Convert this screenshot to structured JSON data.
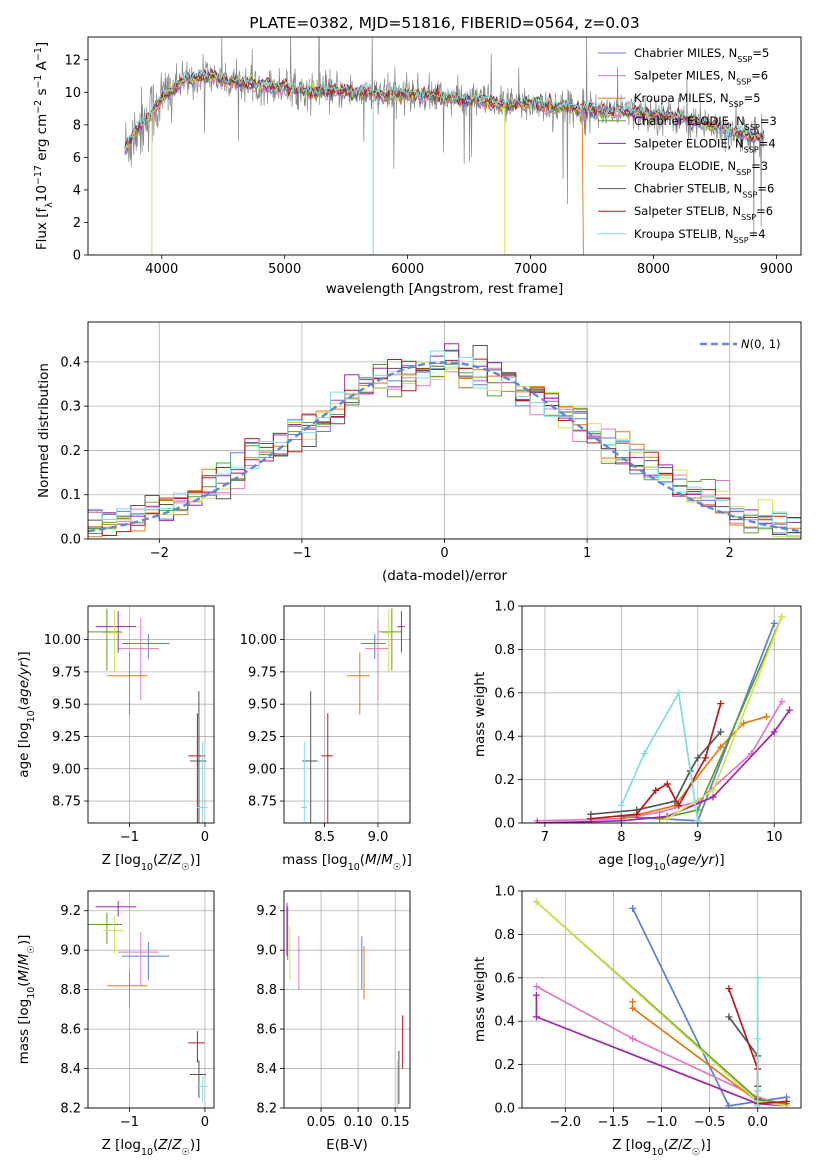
{
  "chart_data": [
    {
      "type": "line",
      "title": "PLATE=0382, MJD=51816, FIBERID=0564, z=0.03",
      "xlabel": "wavelength [Angstrom, rest frame]",
      "ylabel": "Flux [fλ10⁻¹⁷ erg cm⁻² s⁻¹ A⁻¹]",
      "xlim": [
        3400,
        9200
      ],
      "ylim": [
        0,
        13.4
      ],
      "xticks": [
        "4000",
        "5000",
        "6000",
        "7000",
        "8000",
        "9000"
      ],
      "yticks": [
        "0",
        "2",
        "4",
        "6",
        "8",
        "10",
        "12"
      ],
      "grid": false,
      "legend_position": "top-right",
      "observed_spectrum": {
        "x": [
          3700,
          3800,
          3900,
          4000,
          4200,
          4400,
          4600,
          4800,
          5000,
          5200,
          5400,
          5600,
          5800,
          6000,
          6200,
          6400,
          6600,
          6800,
          7000,
          7200,
          7400,
          7600,
          7800,
          8000,
          8200,
          8400,
          8600,
          8800
        ],
        "y": [
          6.5,
          7.8,
          8.6,
          9.6,
          10.8,
          11.0,
          10.6,
          10.5,
          10.3,
          10.0,
          10.1,
          10.0,
          9.8,
          9.9,
          9.8,
          9.6,
          9.5,
          9.2,
          9.3,
          9.1,
          9.0,
          8.8,
          8.8,
          8.6,
          8.5,
          8.1,
          7.7,
          7.3
        ]
      },
      "series": [
        {
          "name": "Chabrier MILES, N_SSP=5",
          "color": "#5b7fd6"
        },
        {
          "name": "Salpeter MILES, N_SSP=6",
          "color": "#e377c2"
        },
        {
          "name": "Kroupa MILES, N_SSP=5",
          "color": "#e07b1a"
        },
        {
          "name": "Chabrier ELODIE, N_SSP=3",
          "color": "#5aa02c"
        },
        {
          "name": "Salpeter ELODIE, N_SSP=4",
          "color": "#9c27b0"
        },
        {
          "name": "Kroupa ELODIE, N_SSP=3",
          "color": "#d4e157"
        },
        {
          "name": "Chabrier STELIB, N_SSP=6",
          "color": "#555555"
        },
        {
          "name": "Salpeter STELIB, N_SSP=6",
          "color": "#b71c1c"
        },
        {
          "name": "Kroupa STELIB, N_SSP=4",
          "color": "#7fdde0"
        }
      ],
      "legend_labels": [
        {
          "base": "Chabrier MILES, N",
          "sub": "SSP",
          "tail": "=5"
        },
        {
          "base": "Salpeter MILES, N",
          "sub": "SSP",
          "tail": "=6"
        },
        {
          "base": "Kroupa MILES, N",
          "sub": "SSP",
          "tail": "=5"
        },
        {
          "base": "Chabrier ELODIE, N",
          "sub": "SSP",
          "tail": "=3"
        },
        {
          "base": "Salpeter ELODIE, N",
          "sub": "SSP",
          "tail": "=4"
        },
        {
          "base": "Kroupa ELODIE, N",
          "sub": "SSP",
          "tail": "=3"
        },
        {
          "base": "Chabrier STELIB, N",
          "sub": "SSP",
          "tail": "=6"
        },
        {
          "base": "Salpeter STELIB, N",
          "sub": "SSP",
          "tail": "=6"
        },
        {
          "base": "Kroupa STELIB, N",
          "sub": "SSP",
          "tail": "=4"
        }
      ]
    },
    {
      "type": "line",
      "xlabel": "(data-model)/error",
      "ylabel": "Normed distribution",
      "xlim": [
        -2.5,
        2.5
      ],
      "ylim": [
        0,
        0.49
      ],
      "xticks": [
        "−2",
        "−1",
        "0",
        "1",
        "2"
      ],
      "yticks": [
        "0.0",
        "0.1",
        "0.2",
        "0.3",
        "0.4"
      ],
      "grid": true,
      "legend": "N(0,1)",
      "legend_position": "top-right",
      "reference_curve": {
        "name": "N(0,1)",
        "mean": 0,
        "sigma": 1,
        "color": "#5b8bd6"
      }
    },
    {
      "type": "scatter",
      "xlabel": "Z [log10(Z/Z☉)]",
      "ylabel": "age [log10(age/yr)]",
      "xlim": [
        -1.55,
        0.12
      ],
      "ylim": [
        8.58,
        10.26
      ],
      "xticks": [
        "−1",
        "0"
      ],
      "yticks": [
        "8.75",
        "9.00",
        "9.25",
        "9.50",
        "9.75",
        "10.00"
      ],
      "grid": true,
      "points": [
        {
          "model": "Chabrier MILES",
          "x": -0.75,
          "y": 9.97
        },
        {
          "model": "Salpeter MILES",
          "x": -0.85,
          "y": 9.93
        },
        {
          "model": "Kroupa MILES",
          "x": -1.0,
          "y": 9.72
        },
        {
          "model": "Chabrier ELODIE",
          "x": -1.3,
          "y": 10.06
        },
        {
          "model": "Salpeter ELODIE",
          "x": -1.15,
          "y": 10.1
        },
        {
          "model": "Kroupa ELODIE",
          "x": -1.2,
          "y": 10.05
        },
        {
          "model": "Chabrier STELIB",
          "x": -0.08,
          "y": 9.06
        },
        {
          "model": "Salpeter STELIB",
          "x": -0.1,
          "y": 9.1
        },
        {
          "model": "Kroupa STELIB",
          "x": -0.03,
          "y": 8.7
        }
      ]
    },
    {
      "type": "scatter",
      "xlabel": "mass [log10(M/M☉)]",
      "ylabel": "",
      "xlim": [
        8.12,
        9.3
      ],
      "ylim": [
        8.58,
        10.26
      ],
      "xticks": [
        "8.5",
        "9.0"
      ],
      "yticks": [
        "8.75",
        "9.00",
        "9.25",
        "9.50",
        "9.75",
        "10.00"
      ],
      "grid": true,
      "points": [
        {
          "model": "Chabrier MILES",
          "x": 8.97,
          "y": 9.97
        },
        {
          "model": "Salpeter MILES",
          "x": 9.0,
          "y": 9.93
        },
        {
          "model": "Kroupa MILES",
          "x": 8.83,
          "y": 9.72
        },
        {
          "model": "Chabrier ELODIE",
          "x": 9.13,
          "y": 10.06
        },
        {
          "model": "Salpeter ELODIE",
          "x": 9.22,
          "y": 10.1
        },
        {
          "model": "Kroupa ELODIE",
          "x": 9.1,
          "y": 10.05
        },
        {
          "model": "Chabrier STELIB",
          "x": 8.37,
          "y": 9.06
        },
        {
          "model": "Salpeter STELIB",
          "x": 8.53,
          "y": 9.1
        },
        {
          "model": "Kroupa STELIB",
          "x": 8.31,
          "y": 8.7
        }
      ]
    },
    {
      "type": "line",
      "xlabel": "age [log10(age/yr)]",
      "ylabel": "mass weight",
      "xlim": [
        6.7,
        10.35
      ],
      "ylim": [
        0,
        1.0
      ],
      "xticks": [
        "7",
        "8",
        "9",
        "10"
      ],
      "yticks": [
        "0.0",
        "0.2",
        "0.4",
        "0.6",
        "0.8",
        "1.0"
      ],
      "grid": true,
      "series": [
        {
          "name": "Chabrier MILES",
          "color": "#5b7fd6",
          "x": [
            8.0,
            9.0,
            10.0
          ],
          "y": [
            0.03,
            0.01,
            0.92
          ]
        },
        {
          "name": "Salpeter MILES",
          "color": "#e377c2",
          "x": [
            6.9,
            8.0,
            8.5,
            9.0,
            9.7,
            10.1
          ],
          "y": [
            0.01,
            0.02,
            0.05,
            0.1,
            0.32,
            0.56
          ]
        },
        {
          "name": "Kroupa MILES",
          "color": "#e07b1a",
          "x": [
            8.0,
            8.7,
            9.3,
            9.6,
            9.9
          ],
          "y": [
            0.02,
            0.08,
            0.35,
            0.46,
            0.49
          ]
        },
        {
          "name": "Chabrier ELODIE",
          "color": "#5aa02c",
          "x": [
            8.5,
            9.0,
            10.1
          ],
          "y": [
            0.02,
            0.06,
            0.95
          ]
        },
        {
          "name": "Salpeter ELODIE",
          "color": "#9c27b0",
          "x": [
            6.9,
            8.0,
            8.6,
            9.2,
            10.0,
            10.2
          ],
          "y": [
            0.0,
            0.01,
            0.03,
            0.12,
            0.42,
            0.52
          ]
        },
        {
          "name": "Kroupa ELODIE",
          "color": "#d4e157",
          "x": [
            8.6,
            9.2,
            10.1
          ],
          "y": [
            0.02,
            0.15,
            0.95
          ]
        },
        {
          "name": "Chabrier STELIB",
          "color": "#555555",
          "x": [
            7.6,
            8.2,
            8.7,
            8.9,
            9.0,
            9.3
          ],
          "y": [
            0.04,
            0.06,
            0.1,
            0.24,
            0.3,
            0.42
          ]
        },
        {
          "name": "Salpeter STELIB",
          "color": "#b71c1c",
          "x": [
            7.6,
            8.2,
            8.45,
            8.6,
            8.75,
            9.1,
            9.3
          ],
          "y": [
            0.02,
            0.04,
            0.15,
            0.18,
            0.08,
            0.3,
            0.55
          ]
        },
        {
          "name": "Kroupa STELIB",
          "color": "#7fdde0",
          "x": [
            8.0,
            8.3,
            8.75,
            9.0
          ],
          "y": [
            0.08,
            0.32,
            0.6,
            0.01
          ]
        }
      ]
    },
    {
      "type": "scatter",
      "xlabel": "Z [log10(Z/Z☉)]",
      "ylabel": "mass [log10(M/M☉)]",
      "xlim": [
        -1.55,
        0.12
      ],
      "ylim": [
        8.2,
        9.3
      ],
      "xticks": [
        "−1",
        "0"
      ],
      "yticks": [
        "8.2",
        "8.4",
        "8.6",
        "8.8",
        "9.0",
        "9.2"
      ],
      "grid": true,
      "points": [
        {
          "model": "Chabrier MILES",
          "x": -0.75,
          "y": 8.97
        },
        {
          "model": "Salpeter MILES",
          "x": -0.85,
          "y": 8.99
        },
        {
          "model": "Kroupa MILES",
          "x": -1.0,
          "y": 8.82
        },
        {
          "model": "Chabrier ELODIE",
          "x": -1.3,
          "y": 9.13
        },
        {
          "model": "Salpeter ELODIE",
          "x": -1.15,
          "y": 9.22
        },
        {
          "model": "Kroupa ELODIE",
          "x": -1.2,
          "y": 9.1
        },
        {
          "model": "Chabrier STELIB",
          "x": -0.08,
          "y": 8.37
        },
        {
          "model": "Salpeter STELIB",
          "x": -0.1,
          "y": 8.53
        },
        {
          "model": "Kroupa STELIB",
          "x": -0.03,
          "y": 8.31
        }
      ]
    },
    {
      "type": "scatter",
      "xlabel": "E(B-V)",
      "ylabel": "",
      "xlim": [
        0.0,
        0.17
      ],
      "ylim": [
        8.2,
        9.3
      ],
      "xticks": [
        "0.05",
        "0.10",
        "0.15"
      ],
      "yticks": [
        "8.2",
        "8.4",
        "8.6",
        "8.8",
        "9.0",
        "9.2"
      ],
      "grid": true,
      "points": [
        {
          "model": "Chabrier MILES",
          "x": 0.105,
          "y": 8.95
        },
        {
          "model": "Salpeter MILES",
          "x": 0.02,
          "y": 8.95
        },
        {
          "model": "Kroupa MILES",
          "x": 0.108,
          "y": 8.9
        },
        {
          "model": "Chabrier ELODIE",
          "x": 0.005,
          "y": 9.1
        },
        {
          "model": "Salpeter ELODIE",
          "x": 0.004,
          "y": 9.12
        },
        {
          "model": "Kroupa ELODIE",
          "x": 0.008,
          "y": 9.0
        },
        {
          "model": "Chabrier STELIB",
          "x": 0.155,
          "y": 8.37
        },
        {
          "model": "Salpeter STELIB",
          "x": 0.16,
          "y": 8.55
        },
        {
          "model": "Kroupa STELIB",
          "x": 0.153,
          "y": 8.32
        }
      ]
    },
    {
      "type": "line",
      "xlabel": "Z [log10(Z/Z☉)]",
      "ylabel": "mass weight",
      "xlim": [
        -2.45,
        0.45
      ],
      "ylim": [
        0,
        1.0
      ],
      "xticks": [
        "−2.0",
        "−1.5",
        "−1.0",
        "−0.5",
        "0.0"
      ],
      "yticks": [
        "0.0",
        "0.2",
        "0.4",
        "0.6",
        "0.8",
        "1.0"
      ],
      "grid": true,
      "series": [
        {
          "name": "Chabrier MILES",
          "color": "#5b7fd6",
          "x": [
            -1.3,
            -0.3,
            0.0,
            0.3
          ],
          "y": [
            0.92,
            0.01,
            0.03,
            0.05
          ]
        },
        {
          "name": "Salpeter MILES",
          "color": "#e377c2",
          "x": [
            -2.3,
            -1.3,
            0.0,
            0.3
          ],
          "y": [
            0.56,
            0.32,
            0.05,
            0.01
          ]
        },
        {
          "name": "Kroupa MILES",
          "color": "#e07b1a",
          "x": [
            -1.3,
            -1.3,
            0.0
          ],
          "y": [
            0.49,
            0.46,
            0.03
          ]
        },
        {
          "name": "Chabrier ELODIE",
          "color": "#5aa02c",
          "x": [
            -2.3,
            0.0,
            0.3
          ],
          "y": [
            0.95,
            0.04,
            0.02
          ]
        },
        {
          "name": "Salpeter ELODIE",
          "color": "#9c27b0",
          "x": [
            -2.3,
            -2.3,
            0.0,
            0.3
          ],
          "y": [
            0.52,
            0.42,
            0.02,
            0.01
          ]
        },
        {
          "name": "Kroupa ELODIE",
          "color": "#d4e157",
          "x": [
            -2.3,
            0.0,
            0.3
          ],
          "y": [
            0.95,
            0.03,
            0.01
          ]
        },
        {
          "name": "Chabrier STELIB",
          "color": "#555555",
          "x": [
            -0.3,
            0.0,
            0.0,
            0.0
          ],
          "y": [
            0.42,
            0.24,
            0.1,
            0.04
          ]
        },
        {
          "name": "Salpeter STELIB",
          "color": "#b71c1c",
          "x": [
            -0.3,
            0.0,
            0.0,
            0.0,
            0.3
          ],
          "y": [
            0.55,
            0.18,
            0.08,
            0.02,
            0.03
          ]
        },
        {
          "name": "Kroupa STELIB",
          "color": "#7fdde0",
          "x": [
            0.0,
            0.0,
            0.0,
            0.0
          ],
          "y": [
            0.6,
            0.32,
            0.08,
            0.01
          ]
        }
      ]
    }
  ]
}
